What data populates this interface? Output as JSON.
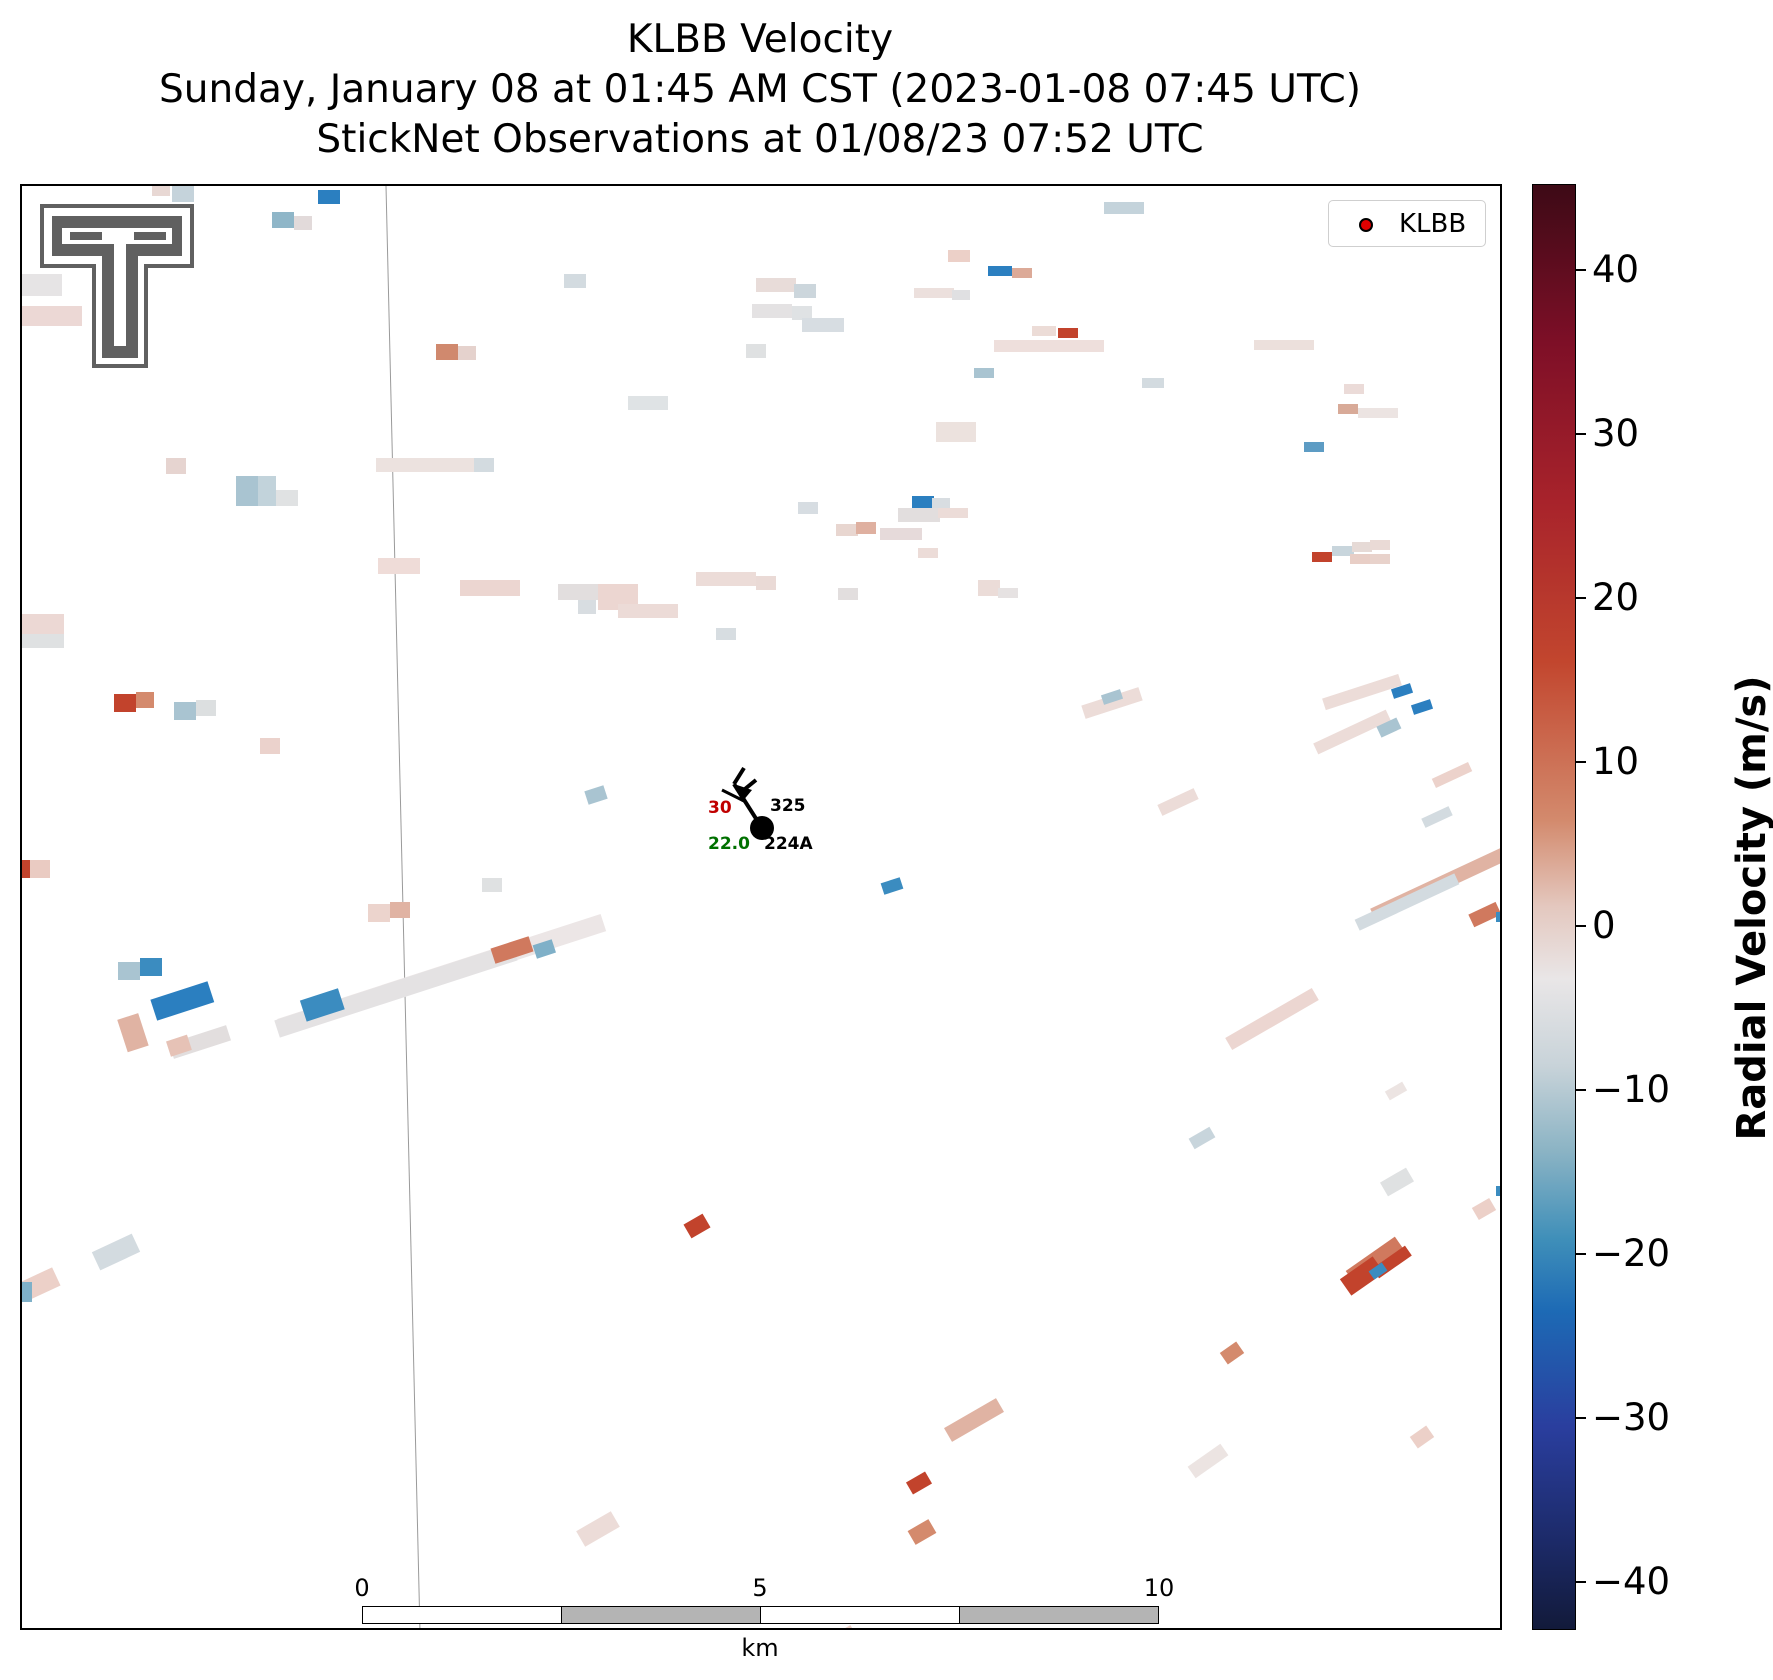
{
  "title": {
    "line1": "KLBB Velocity",
    "line2": "Sunday, January 08 at 01:45 AM CST (2023-01-08 07:45 UTC)",
    "line3": "StickNet Observations at 01/08/23 07:52 UTC"
  },
  "legend": {
    "label": "KLBB",
    "marker_color": "#e00000"
  },
  "station": {
    "id": "224A",
    "top_label": "325",
    "temperature": "30",
    "dewpoint": "22.0",
    "temperature_color": "#c00000",
    "dewpoint_color": "#007000"
  },
  "scale_bar": {
    "unit": "km",
    "ticks": [
      "0",
      "5",
      "10"
    ]
  },
  "colorbar": {
    "title": "Radial Velocity (m/s)",
    "ticks": [
      "40",
      "30",
      "20",
      "10",
      "0",
      "−10",
      "−20",
      "−30",
      "−40"
    ],
    "range": [
      -45,
      45
    ]
  },
  "logo": {
    "name": "Texas Tech Double T",
    "color": "#606060"
  }
}
